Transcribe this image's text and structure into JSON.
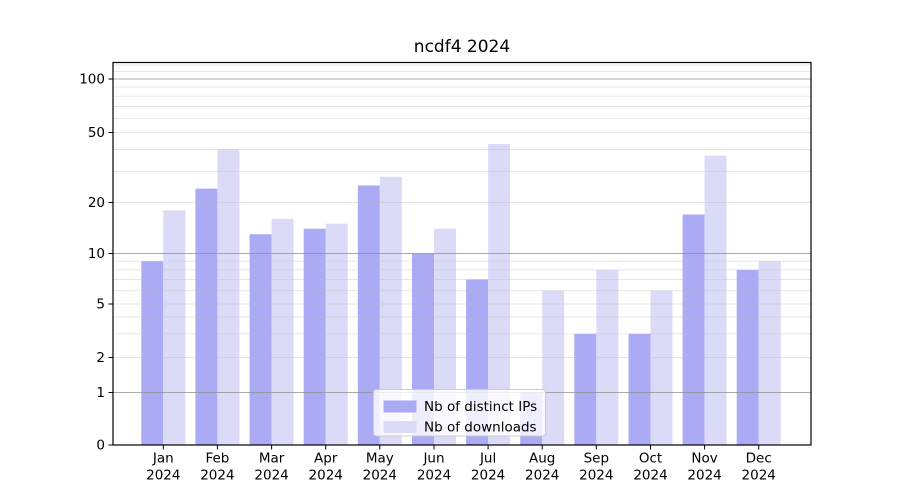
{
  "chart_data": {
    "type": "bar",
    "title": "ncdf4 2024",
    "months": [
      "Jan",
      "Feb",
      "Mar",
      "Apr",
      "May",
      "Jun",
      "Jul",
      "Aug",
      "Sep",
      "Oct",
      "Nov",
      "Dec"
    ],
    "tick_year": "2024",
    "series": [
      {
        "name": "Nb of distinct IPs",
        "color": "#aaaaf5",
        "values": [
          9,
          24,
          13,
          14,
          25,
          10,
          7,
          1,
          3,
          3,
          17,
          8
        ]
      },
      {
        "name": "Nb of downloads",
        "color": "#dbdbf8",
        "values": [
          18,
          40,
          16,
          15,
          28,
          14,
          43,
          6,
          8,
          6,
          37,
          9
        ]
      }
    ],
    "xlabel": "",
    "ylabel": "",
    "yscale": "symlog",
    "yticks": [
      0,
      1,
      2,
      5,
      10,
      20,
      50,
      100
    ],
    "ylim": [
      0,
      124
    ],
    "grid": "on",
    "legend_position": "lower-center"
  }
}
